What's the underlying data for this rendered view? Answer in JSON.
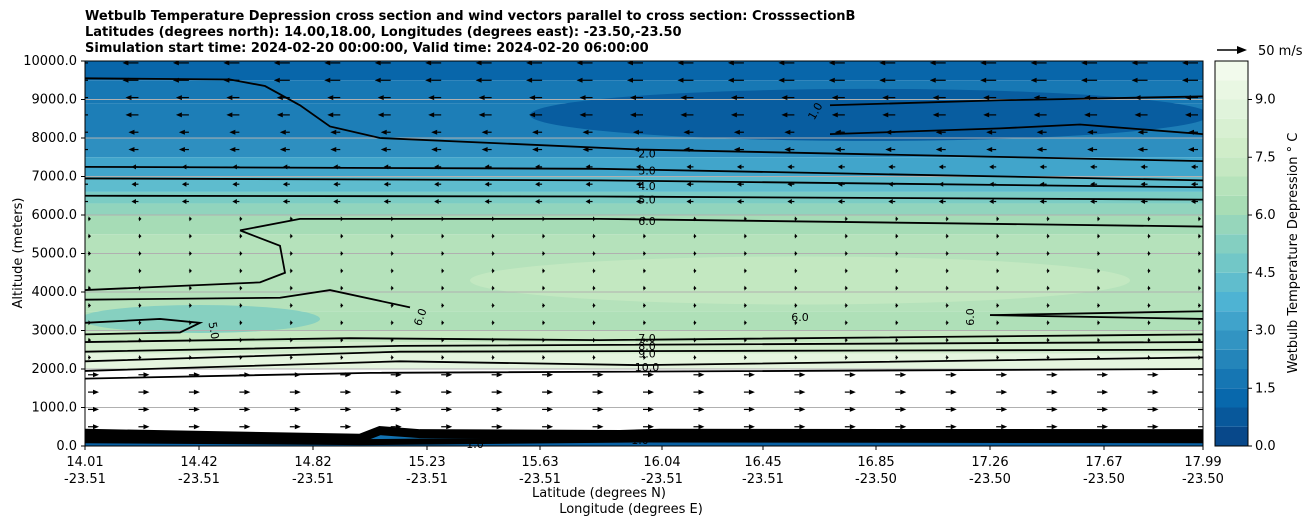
{
  "chart_data": {
    "type": "heatmap",
    "title_lines": [
      "Wetbulb Temperature Depression cross section and wind vectors parallel to cross section: CrosssectionB",
      "Latitudes (degrees north): 14.00,18.00, Longitudes (degrees east): -23.50,-23.50",
      "Simulation start time: 2024-02-20 00:00:00, Valid time: 2024-02-20 06:00:00"
    ],
    "xlabel_lat": "Latitude (degrees N)",
    "xlabel_lon": "Longitude (degrees E)",
    "ylabel": "Altitude (meters)",
    "x_ticks": [
      {
        "lat": "14.01",
        "lon": "-23.51"
      },
      {
        "lat": "14.42",
        "lon": "-23.51"
      },
      {
        "lat": "14.82",
        "lon": "-23.51"
      },
      {
        "lat": "15.23",
        "lon": "-23.51"
      },
      {
        "lat": "15.63",
        "lon": "-23.51"
      },
      {
        "lat": "16.04",
        "lon": "-23.51"
      },
      {
        "lat": "16.45",
        "lon": "-23.51"
      },
      {
        "lat": "16.85",
        "lon": "-23.50"
      },
      {
        "lat": "17.26",
        "lon": "-23.50"
      },
      {
        "lat": "17.67",
        "lon": "-23.50"
      },
      {
        "lat": "17.99",
        "lon": "-23.50"
      }
    ],
    "y_ticks": [
      "0.0",
      "1000.0",
      "2000.0",
      "3000.0",
      "4000.0",
      "5000.0",
      "6000.0",
      "7000.0",
      "8000.0",
      "9000.0",
      "10000.0"
    ],
    "xlim": [
      14.01,
      17.99
    ],
    "ylim": [
      0,
      10000
    ],
    "colorbar": {
      "label": "Wetbulb Temperature Depression ° C",
      "ticks": [
        "0.0",
        "1.5",
        "3.0",
        "4.5",
        "6.0",
        "7.5",
        "9.0"
      ],
      "range": [
        0,
        10
      ],
      "colormap": "GnBu_r"
    },
    "wind_reference": {
      "label": "50 m/s"
    },
    "contour_labels": [
      "1.0",
      "2.0",
      "3.0",
      "4.0",
      "5.0",
      "6.0",
      "6.0",
      "6.0",
      "6.0",
      "5.0",
      "7.0",
      "8.0",
      "9.0",
      "10.0",
      "1.0",
      "10.0",
      "1.0"
    ],
    "contour_levels": [
      1,
      2,
      3,
      4,
      5,
      6,
      7,
      8,
      9,
      10
    ],
    "layers": [
      {
        "altitude_range": [
          9500,
          10000
        ],
        "depression": 1.0,
        "wind": "strong from east"
      },
      {
        "altitude_range": [
          8000,
          9500
        ],
        "depression": 1.5,
        "wind": "easterly"
      },
      {
        "altitude_range": [
          6000,
          7500
        ],
        "depression": 4.5,
        "wind": "light easterly"
      },
      {
        "altitude_range": [
          3500,
          6000
        ],
        "depression": 6.5,
        "wind": "weak"
      },
      {
        "altitude_range": [
          2000,
          3000
        ],
        "depression": 8.5,
        "wind": "weak"
      },
      {
        "altitude_range": [
          300,
          2000
        ],
        "depression": null,
        "wind": "westerly"
      }
    ],
    "grid": true
  }
}
